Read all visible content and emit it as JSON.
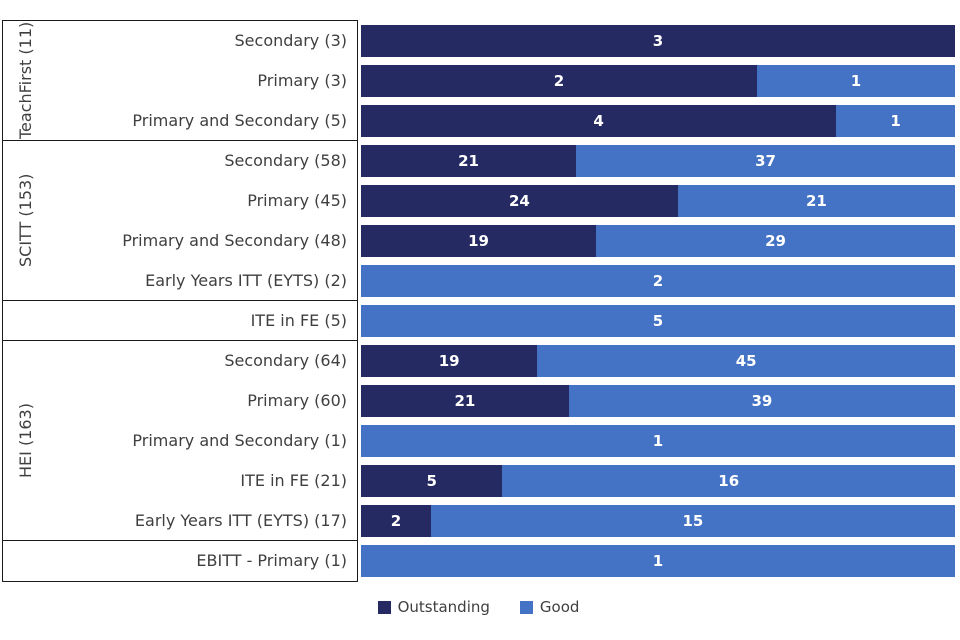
{
  "legend": [
    {
      "label": "Outstanding",
      "color": "#262A63"
    },
    {
      "label": "Good",
      "color": "#4472C4"
    }
  ],
  "chart_data": {
    "type": "bar",
    "orientation": "horizontal",
    "stacked": true,
    "stacked_100_percent": true,
    "series_names": [
      "Outstanding",
      "Good"
    ],
    "colors": {
      "outstanding": "#262A63",
      "good": "#4472C4"
    },
    "groups": [
      {
        "name": "TeachFirst (11)",
        "rows": [
          {
            "label": "Secondary (3)",
            "outstanding": 3,
            "good": 0
          },
          {
            "label": "Primary (3)",
            "outstanding": 2,
            "good": 1
          },
          {
            "label": "Primary and Secondary (5)",
            "outstanding": 4,
            "good": 1
          }
        ]
      },
      {
        "name": "SCITT (153)",
        "rows": [
          {
            "label": "Secondary (58)",
            "outstanding": 21,
            "good": 37
          },
          {
            "label": "Primary (45)",
            "outstanding": 24,
            "good": 21
          },
          {
            "label": "Primary and Secondary (48)",
            "outstanding": 19,
            "good": 29
          },
          {
            "label": "Early Years ITT (EYTS) (2)",
            "outstanding": 0,
            "good": 2
          }
        ]
      },
      {
        "name": "",
        "rows": [
          {
            "label": "ITE in FE (5)",
            "outstanding": 0,
            "good": 5
          }
        ]
      },
      {
        "name": "HEI (163)",
        "rows": [
          {
            "label": "Secondary (64)",
            "outstanding": 19,
            "good": 45
          },
          {
            "label": "Primary (60)",
            "outstanding": 21,
            "good": 39
          },
          {
            "label": "Primary and Secondary (1)",
            "outstanding": 0,
            "good": 1
          },
          {
            "label": "ITE in FE (21)",
            "outstanding": 5,
            "good": 16
          },
          {
            "label": "Early Years ITT (EYTS) (17)",
            "outstanding": 2,
            "good": 15
          }
        ]
      },
      {
        "name": "",
        "rows": [
          {
            "label": "EBITT - Primary (1)",
            "outstanding": 0,
            "good": 1
          }
        ]
      }
    ]
  }
}
